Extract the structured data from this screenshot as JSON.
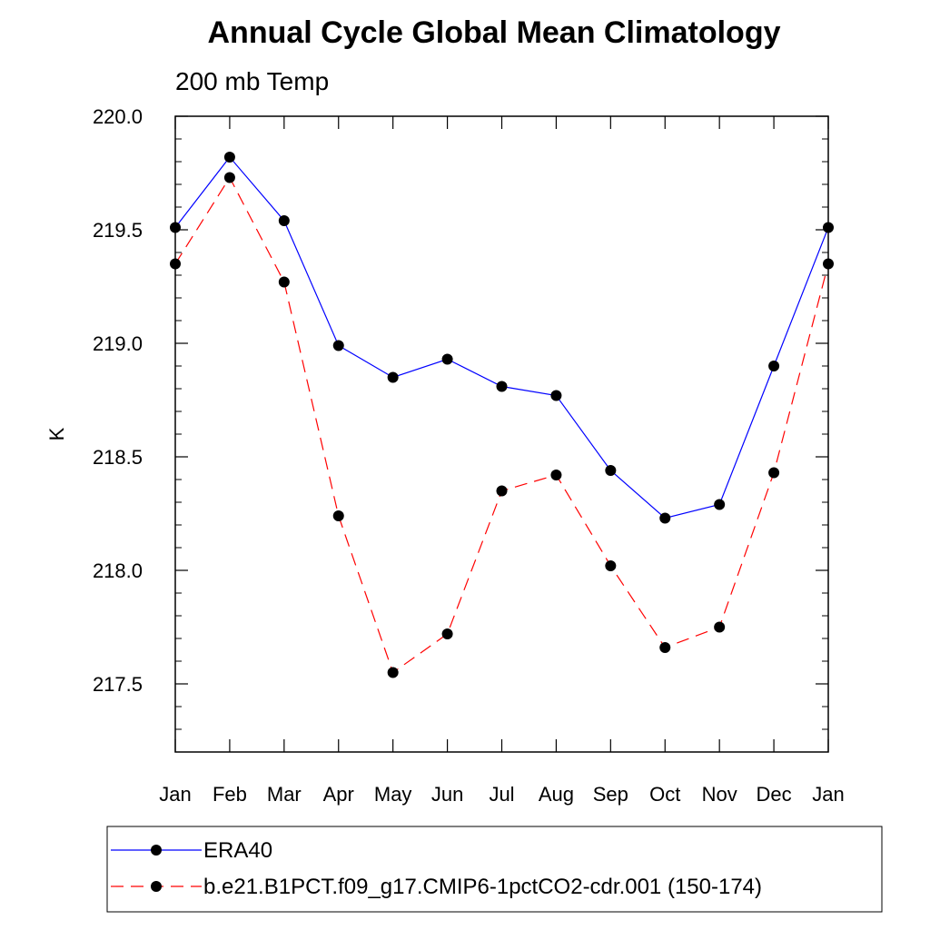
{
  "chart_data": {
    "type": "line",
    "title": "Annual Cycle Global Mean Climatology",
    "subtitle": "200 mb Temp",
    "xlabel": "",
    "ylabel": "K",
    "categories": [
      "Jan",
      "Feb",
      "Mar",
      "Apr",
      "May",
      "Jun",
      "Jul",
      "Aug",
      "Sep",
      "Oct",
      "Nov",
      "Dec",
      "Jan"
    ],
    "ylim": [
      217.2,
      220.0
    ],
    "y_ticks": [
      217.5,
      218.0,
      218.5,
      219.0,
      219.5,
      220.0
    ],
    "y_tick_labels": [
      "217.5",
      "218.0",
      "218.5",
      "219.0",
      "219.5",
      "220.0"
    ],
    "y_minor_step": 0.1,
    "grid": false,
    "legend_position": "bottom",
    "series": [
      {
        "name": "ERA40",
        "color": "#0000ff",
        "dash": "solid",
        "marker": "filled-circle",
        "values": [
          219.51,
          219.82,
          219.54,
          218.99,
          218.85,
          218.93,
          218.81,
          218.77,
          218.44,
          218.23,
          218.29,
          218.9,
          219.51
        ]
      },
      {
        "name": "b.e21.B1PCT.f09_g17.CMIP6-1pctCO2-cdr.001 (150-174)",
        "color": "#ff0000",
        "dash": "dashed",
        "marker": "filled-circle",
        "values": [
          219.35,
          219.73,
          219.27,
          218.24,
          217.55,
          217.72,
          218.35,
          218.42,
          218.02,
          217.66,
          217.75,
          218.43,
          219.35
        ]
      }
    ]
  }
}
